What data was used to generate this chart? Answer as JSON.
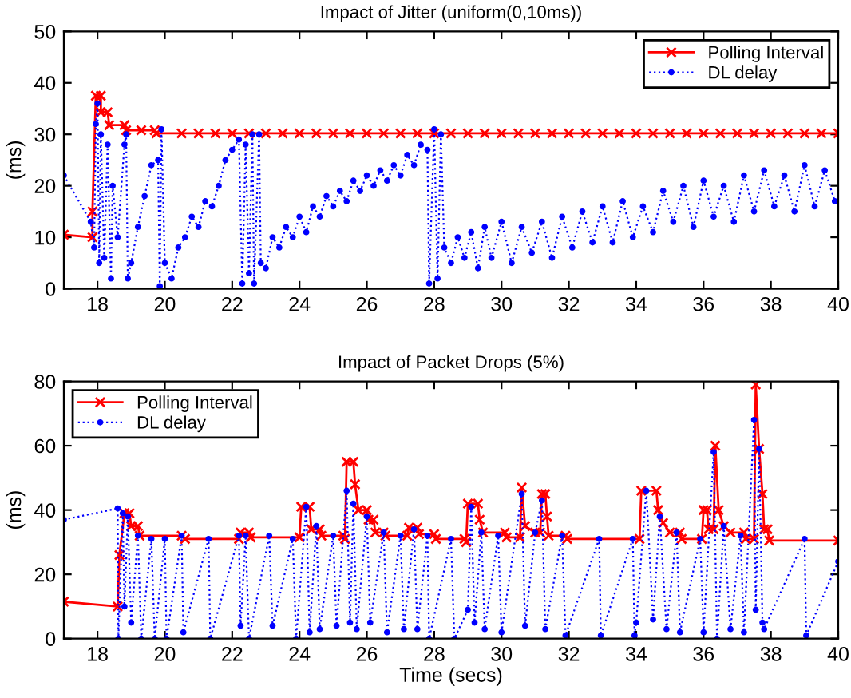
{
  "chart_data": [
    {
      "type": "line",
      "title": "Impact of Jitter (uniform(0,10ms))",
      "ylabel": "(ms)",
      "xlim": [
        17,
        40
      ],
      "ylim": [
        0,
        50
      ],
      "xticks": [
        18,
        20,
        22,
        24,
        26,
        28,
        30,
        32,
        34,
        36,
        38,
        40
      ],
      "yticks": [
        0,
        10,
        20,
        30,
        40,
        50
      ],
      "grid": false,
      "legend": "top right",
      "series": [
        {
          "name": "Polling Interval",
          "color": "#ff0000",
          "marker": "cross",
          "line_style": "solid",
          "x": [
            17,
            17.85,
            17.85,
            17.95,
            18.1,
            18.1,
            18.3,
            18.35,
            18.8,
            18.85,
            19.3,
            19.7,
            19.75,
            20.5,
            21,
            21.5,
            22,
            22.5,
            23,
            23.5,
            24,
            24.5,
            25,
            25.5,
            26,
            26.5,
            27,
            27.5,
            28,
            28.5,
            29,
            29.5,
            30,
            30.5,
            31,
            31.5,
            32,
            32.5,
            33,
            33.5,
            34,
            34.5,
            35,
            35.5,
            36,
            36.5,
            37,
            37.5,
            38,
            38.5,
            39,
            39.5,
            40
          ],
          "values": [
            10.5,
            10,
            15,
            37.5,
            37.5,
            34.3,
            34.3,
            31.8,
            31.8,
            30.8,
            30.8,
            30.8,
            30.2,
            30.2,
            30.2,
            30.2,
            30.2,
            30.2,
            30.2,
            30.2,
            30.2,
            30.2,
            30.2,
            30.2,
            30.2,
            30.2,
            30.2,
            30.2,
            30.2,
            30.2,
            30.2,
            30.2,
            30.2,
            30.2,
            30.2,
            30.2,
            30.2,
            30.2,
            30.2,
            30.2,
            30.2,
            30.2,
            30.2,
            30.2,
            30.2,
            30.2,
            30.2,
            30.2,
            30.2,
            30.2,
            30.2,
            30.2,
            30.2
          ]
        },
        {
          "name": "DL delay",
          "color": "#0000ff",
          "marker": "circle",
          "line_style": "dotted",
          "x": [
            17,
            17.8,
            17.9,
            17.95,
            18.0,
            18.05,
            18.1,
            18.2,
            18.3,
            18.4,
            18.45,
            18.6,
            18.8,
            18.85,
            18.9,
            19.0,
            19.2,
            19.4,
            19.6,
            19.8,
            19.85,
            19.9,
            20.0,
            20.2,
            20.4,
            20.6,
            20.8,
            21.0,
            21.2,
            21.4,
            21.6,
            21.8,
            22.0,
            22.2,
            22.3,
            22.4,
            22.5,
            22.6,
            22.65,
            22.8,
            22.85,
            23.0,
            23.2,
            23.4,
            23.6,
            23.8,
            24.0,
            24.2,
            24.4,
            24.6,
            24.8,
            25.0,
            25.2,
            25.4,
            25.6,
            25.8,
            26.0,
            26.2,
            26.4,
            26.6,
            26.8,
            27.0,
            27.2,
            27.4,
            27.6,
            27.8,
            27.85,
            28.0,
            28.1,
            28.2,
            28.3,
            28.5,
            28.7,
            28.9,
            29.1,
            29.3,
            29.5,
            29.7,
            30.0,
            30.3,
            30.6,
            30.9,
            31.2,
            31.5,
            31.8,
            32.1,
            32.4,
            32.7,
            33.0,
            33.3,
            33.6,
            33.9,
            34.2,
            34.5,
            34.8,
            35.1,
            35.4,
            35.7,
            36.0,
            36.3,
            36.6,
            36.9,
            37.2,
            37.5,
            37.8,
            38.1,
            38.4,
            38.7,
            39.0,
            39.3,
            39.6,
            39.9
          ],
          "values": [
            22,
            13,
            8,
            32,
            36,
            5,
            30,
            6,
            28,
            2,
            20,
            10,
            28,
            30,
            2,
            5,
            12,
            18,
            24,
            25,
            0.5,
            31,
            5,
            2,
            8,
            10,
            14,
            12,
            17,
            16,
            20,
            25,
            27,
            29,
            1,
            28,
            3,
            30,
            1,
            30,
            5,
            4,
            10,
            8,
            12,
            10,
            14,
            11,
            16,
            14,
            18,
            16,
            19,
            17,
            21,
            19,
            22,
            20,
            23,
            21,
            24,
            22,
            26,
            24,
            28,
            27,
            1,
            31,
            2,
            30,
            8,
            5,
            10,
            6,
            11,
            4,
            12,
            6,
            13,
            5,
            12,
            7,
            13,
            6,
            14,
            8,
            15,
            9,
            16,
            9,
            17,
            10,
            16,
            11,
            19,
            13,
            20,
            12,
            21,
            14,
            20,
            13,
            22,
            15,
            23,
            16,
            22,
            15,
            24,
            16,
            23,
            17
          ]
        }
      ]
    },
    {
      "type": "line",
      "title": "Impact of Packet Drops (5%)",
      "xlabel": "Time (secs)",
      "ylabel": "(ms)",
      "xlim": [
        17,
        40
      ],
      "ylim": [
        0,
        80
      ],
      "xticks": [
        18,
        20,
        22,
        24,
        26,
        28,
        30,
        32,
        34,
        36,
        38,
        40
      ],
      "yticks": [
        0,
        20,
        40,
        60,
        80
      ],
      "grid": false,
      "legend": "top left",
      "series": [
        {
          "name": "Polling Interval",
          "color": "#ff0000",
          "marker": "cross",
          "line_style": "solid",
          "x": [
            17,
            18.6,
            18.65,
            18.8,
            18.95,
            19.0,
            19.2,
            19.25,
            20.5,
            20.6,
            22.2,
            22.25,
            22.5,
            22.55,
            24.0,
            24.05,
            24.3,
            24.35,
            24.6,
            24.65,
            25.3,
            25.35,
            25.4,
            25.6,
            25.65,
            25.75,
            26.0,
            26.05,
            26.2,
            26.25,
            26.5,
            26.55,
            27.2,
            27.25,
            27.5,
            27.55,
            28.0,
            28.05,
            28.9,
            28.95,
            29.0,
            29.3,
            29.35,
            29.45,
            30.1,
            30.15,
            30.55,
            30.6,
            30.7,
            31.0,
            31.15,
            31.2,
            31.3,
            31.35,
            31.4,
            31.9,
            31.95,
            34.1,
            34.15,
            34.6,
            34.65,
            34.8,
            35.0,
            35.3,
            35.35,
            35.95,
            36.0,
            36.1,
            36.15,
            36.3,
            36.35,
            36.45,
            36.6,
            36.8,
            37.2,
            37.25,
            37.5,
            37.55,
            37.65,
            37.75,
            37.8,
            37.9,
            37.95,
            40
          ],
          "values": [
            11.5,
            10,
            26,
            39,
            39,
            35,
            35,
            32,
            32,
            31,
            31,
            33,
            33,
            31.5,
            31.5,
            41,
            41,
            34,
            34,
            32,
            32,
            31,
            55,
            55,
            48,
            40,
            40,
            37,
            37,
            33,
            33,
            32,
            32,
            34.5,
            34.5,
            32.5,
            32.5,
            31,
            31,
            30,
            42,
            42,
            37,
            33,
            33,
            31.5,
            31.5,
            47,
            35,
            33,
            33,
            45,
            45,
            38,
            32,
            32,
            31,
            31,
            46,
            46,
            40,
            36,
            33,
            33,
            31,
            31,
            40,
            40,
            34,
            34,
            60,
            40,
            35,
            33,
            33,
            31,
            31,
            79,
            59,
            45,
            34,
            34,
            30.5,
            30.5
          ]
        },
        {
          "name": "DL delay",
          "color": "#0000ff",
          "marker": "circle",
          "line_style": "dotted",
          "x": [
            17,
            18.6,
            18.62,
            18.75,
            18.8,
            18.9,
            19.0,
            19.2,
            19.3,
            19.6,
            19.7,
            20.0,
            20.05,
            20.5,
            20.55,
            21.3,
            21.35,
            22.2,
            22.25,
            22.4,
            22.5,
            23.1,
            23.2,
            23.8,
            23.9,
            24.2,
            24.3,
            24.5,
            24.6,
            25.0,
            25.1,
            25.4,
            25.5,
            25.6,
            25.7,
            26.0,
            26.1,
            26.5,
            26.6,
            27.0,
            27.1,
            27.4,
            27.5,
            27.8,
            27.85,
            28.5,
            28.6,
            29.0,
            29.1,
            29.2,
            29.4,
            29.5,
            29.9,
            30.0,
            30.6,
            30.7,
            31.0,
            31.2,
            31.3,
            31.8,
            31.9,
            32.9,
            32.95,
            33.9,
            33.95,
            34.0,
            34.3,
            34.5,
            34.7,
            34.9,
            35.2,
            35.3,
            35.9,
            36.0,
            36.3,
            36.4,
            36.6,
            36.8,
            37.1,
            37.2,
            37.5,
            37.55,
            37.65,
            37.75,
            37.8,
            39.0,
            39.05,
            40
          ],
          "values": [
            37,
            40.5,
            0,
            39,
            10,
            38,
            5,
            32,
            0,
            31,
            0,
            31,
            0,
            32,
            2,
            31,
            0,
            32,
            4,
            32,
            0,
            32,
            4,
            31,
            0,
            41,
            2,
            35,
            3,
            32,
            4,
            46,
            5,
            42,
            3,
            38,
            5,
            33,
            2,
            32,
            3,
            34,
            3,
            32,
            0,
            31,
            0,
            9,
            41,
            5,
            33,
            3,
            32,
            2,
            45,
            4,
            33,
            43,
            3,
            32,
            1,
            31,
            1,
            31,
            1,
            5,
            46,
            6,
            38,
            3,
            33,
            2,
            31,
            2,
            58,
            0,
            35,
            3,
            32,
            2,
            68,
            9,
            59,
            5,
            3,
            31,
            1,
            24
          ]
        }
      ]
    }
  ]
}
